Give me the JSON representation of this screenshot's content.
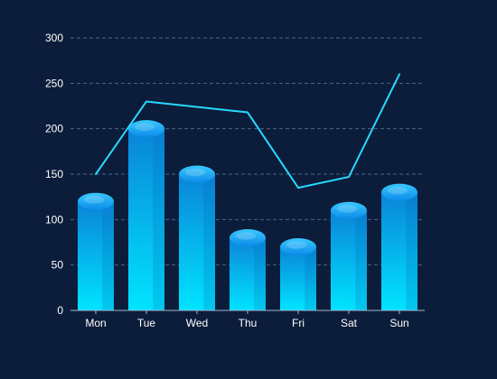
{
  "chart_data": {
    "type": "bar",
    "categories": [
      "Mon",
      "Tue",
      "Wed",
      "Thu",
      "Fri",
      "Sat",
      "Sun"
    ],
    "series": [
      {
        "type": "bar",
        "values": [
          120,
          200,
          150,
          80,
          70,
          110,
          130
        ]
      },
      {
        "type": "line",
        "values": [
          150,
          230,
          224,
          218,
          135,
          147,
          260
        ]
      }
    ],
    "y_ticks": [
      0,
      50,
      100,
      150,
      200,
      250,
      300
    ],
    "ylim": [
      0,
      300
    ],
    "grid": true,
    "colors": {
      "background": "#0b1d3a",
      "bar_top": "#0a84d8",
      "bar_bottom": "#00e4ff",
      "bar_cap": "#18b8ff",
      "line": "#28d8ff",
      "grid": "#5f7fa6",
      "text": "#ffffff"
    }
  }
}
